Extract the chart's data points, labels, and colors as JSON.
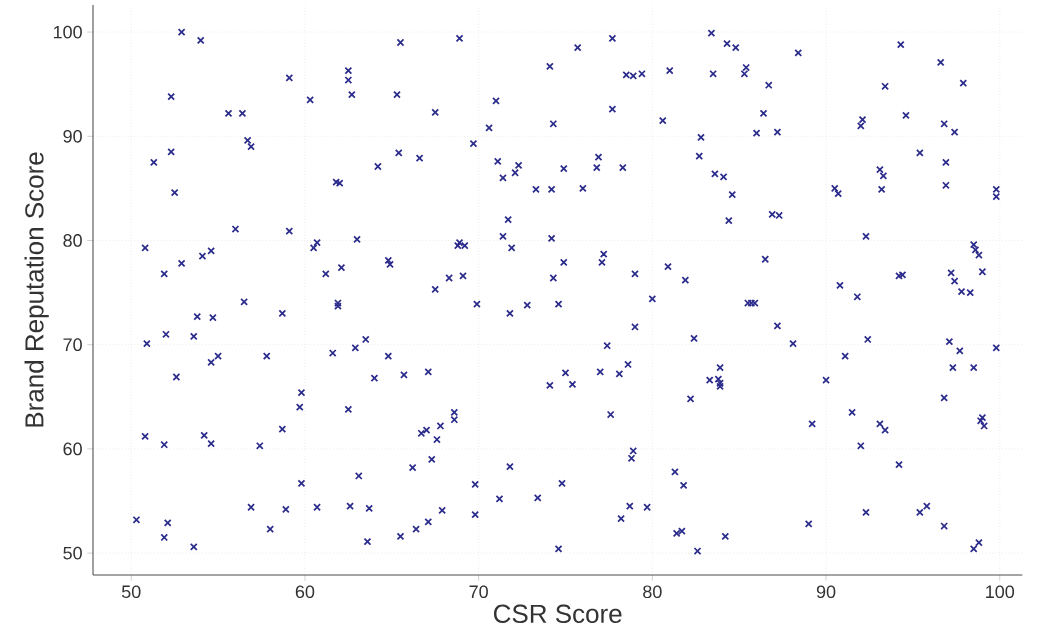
{
  "chart_data": {
    "type": "scatter",
    "xlabel": "CSR Score",
    "ylabel": "Brand Reputation Score",
    "xlim": [
      47.8,
      101.3
    ],
    "ylim": [
      47.9,
      102.6
    ],
    "xticks": [
      50,
      60,
      70,
      80,
      90,
      100
    ],
    "yticks": [
      50,
      60,
      70,
      80,
      90,
      100
    ],
    "grid": true,
    "marker": "cross",
    "color": "#2b2b8c",
    "x": [
      50.3,
      50.8,
      50.9,
      50.8,
      51.3,
      51.9,
      52.0,
      51.9,
      51.9,
      52.1,
      52.3,
      52.3,
      52.5,
      52.6,
      52.9,
      52.9,
      53.6,
      53.6,
      53.8,
      54.0,
      54.1,
      54.2,
      54.6,
      54.7,
      54.6,
      54.6,
      55.0,
      55.6,
      56.0,
      56.4,
      56.5,
      56.7,
      56.9,
      56.9,
      57.4,
      57.8,
      58.0,
      58.7,
      58.7,
      58.9,
      59.1,
      59.1,
      59.7,
      59.8,
      59.8,
      60.3,
      60.5,
      60.7,
      60.7,
      61.2,
      61.6,
      61.8,
      62.0,
      61.9,
      61.9,
      62.1,
      62.5,
      62.5,
      62.5,
      62.6,
      62.7,
      62.9,
      63.0,
      63.1,
      63.5,
      63.6,
      63.7,
      64.0,
      64.2,
      64.8,
      64.8,
      64.9,
      65.3,
      65.4,
      65.5,
      65.5,
      65.7,
      66.2,
      66.4,
      66.6,
      66.7,
      67.0,
      67.1,
      67.1,
      67.3,
      67.5,
      67.5,
      67.6,
      67.8,
      67.9,
      68.3,
      68.6,
      68.6,
      68.8,
      68.9,
      68.9,
      69.2,
      69.1,
      69.7,
      69.8,
      69.9,
      69.8,
      70.6,
      71.0,
      71.1,
      71.2,
      71.4,
      71.4,
      71.7,
      71.8,
      71.8,
      71.9,
      72.1,
      72.3,
      72.8,
      73.3,
      73.4,
      74.1,
      74.1,
      74.2,
      74.2,
      74.3,
      74.3,
      74.6,
      74.6,
      74.8,
      74.9,
      74.9,
      75.0,
      75.4,
      75.7,
      76.0,
      76.8,
      76.9,
      77.0,
      77.1,
      77.2,
      77.4,
      77.6,
      77.7,
      77.7,
      78.1,
      78.2,
      78.3,
      78.5,
      78.6,
      78.7,
      78.8,
      78.9,
      78.9,
      79.0,
      79.0,
      79.4,
      79.7,
      80.0,
      80.6,
      80.9,
      81.0,
      81.3,
      81.4,
      81.7,
      81.8,
      81.9,
      82.2,
      82.4,
      82.6,
      82.7,
      82.8,
      83.3,
      83.4,
      83.5,
      83.6,
      83.8,
      83.9,
      83.9,
      83.9,
      84.1,
      84.2,
      84.3,
      84.4,
      84.6,
      84.8,
      85.3,
      85.4,
      85.5,
      85.7,
      85.9,
      86.0,
      86.4,
      86.5,
      86.7,
      86.9,
      87.2,
      87.2,
      87.3,
      88.1,
      88.4,
      89.0,
      89.2,
      90.0,
      90.5,
      90.7,
      90.8,
      91.1,
      91.5,
      91.8,
      92.0,
      92.0,
      92.1,
      92.3,
      92.3,
      92.4,
      93.1,
      93.1,
      93.2,
      93.3,
      93.4,
      93.4,
      94.2,
      94.2,
      94.3,
      94.4,
      94.6,
      95.4,
      95.4,
      95.8,
      96.6,
      96.8,
      96.8,
      96.8,
      96.9,
      96.9,
      97.1,
      97.2,
      97.3,
      97.4,
      97.4,
      97.7,
      97.8,
      97.9,
      98.3,
      98.5,
      98.6,
      98.5,
      98.5,
      98.8,
      98.8,
      98.9,
      99.0,
      99.0,
      99.1,
      99.8,
      99.8,
      99.8
    ],
    "values": [
      53.2,
      79.3,
      70.1,
      61.2,
      87.5,
      76.8,
      71.0,
      60.4,
      51.5,
      52.9,
      93.8,
      88.5,
      84.6,
      66.9,
      100.0,
      77.8,
      70.8,
      50.6,
      72.7,
      99.2,
      78.5,
      61.3,
      60.5,
      72.6,
      68.3,
      79.0,
      68.9,
      92.2,
      81.1,
      92.2,
      74.1,
      89.6,
      89.0,
      54.4,
      60.3,
      68.9,
      52.3,
      61.9,
      73.0,
      54.2,
      95.6,
      80.9,
      64.0,
      65.4,
      56.7,
      93.5,
      79.3,
      79.8,
      54.4,
      76.8,
      69.2,
      85.6,
      85.5,
      74.0,
      73.7,
      77.4,
      96.3,
      95.4,
      63.8,
      54.5,
      94.0,
      69.7,
      80.1,
      57.4,
      70.5,
      51.1,
      54.3,
      66.8,
      87.1,
      68.9,
      78.1,
      77.7,
      94.0,
      88.4,
      99.0,
      51.6,
      67.1,
      58.2,
      52.3,
      87.9,
      61.5,
      61.8,
      53.0,
      67.4,
      59.0,
      92.3,
      75.3,
      60.9,
      62.2,
      54.1,
      76.4,
      63.5,
      62.8,
      79.5,
      99.4,
      79.8,
      79.5,
      76.6,
      89.3,
      56.6,
      73.9,
      53.7,
      90.8,
      93.4,
      87.6,
      55.2,
      86.0,
      80.4,
      82.0,
      73.0,
      58.3,
      79.3,
      86.5,
      87.2,
      73.8,
      84.9,
      55.3,
      96.7,
      66.1,
      84.9,
      80.2,
      91.2,
      76.4,
      73.9,
      50.4,
      56.7,
      77.9,
      86.9,
      67.3,
      66.2,
      98.5,
      85.0,
      87.0,
      88.0,
      67.4,
      77.9,
      78.7,
      69.9,
      63.3,
      99.4,
      92.6,
      67.2,
      53.3,
      87.0,
      95.9,
      68.1,
      54.5,
      59.1,
      95.8,
      59.8,
      71.7,
      76.8,
      96.0,
      54.4,
      74.4,
      91.5,
      77.5,
      96.3,
      57.8,
      51.9,
      52.1,
      56.5,
      76.2,
      64.8,
      70.6,
      50.2,
      88.1,
      89.9,
      66.6,
      99.9,
      96.0,
      86.4,
      66.7,
      66.3,
      66.0,
      67.8,
      86.1,
      51.6,
      98.9,
      81.9,
      84.4,
      98.5,
      96.0,
      96.6,
      74.0,
      74.0,
      74.0,
      90.3,
      92.2,
      78.2,
      94.9,
      82.5,
      90.4,
      71.8,
      82.4,
      70.1,
      98.0,
      52.8,
      62.4,
      66.6,
      85.0,
      84.5,
      75.7,
      68.9,
      63.5,
      74.6,
      91.0,
      60.3,
      91.6,
      53.9,
      80.4,
      70.5,
      62.4,
      86.8,
      84.9,
      86.2,
      61.8,
      94.8,
      76.6,
      58.5,
      98.8,
      76.7,
      92.0,
      88.4,
      53.9,
      54.5,
      97.1,
      52.6,
      64.9,
      91.2,
      87.5,
      85.3,
      70.3,
      76.9,
      67.8,
      76.1,
      90.4,
      69.4,
      75.1,
      95.1,
      75.0,
      79.6,
      79.1,
      67.8,
      50.4,
      51.0,
      78.6,
      62.7,
      77.0,
      63.0,
      62.2,
      84.9,
      84.2,
      69.7
    ]
  }
}
